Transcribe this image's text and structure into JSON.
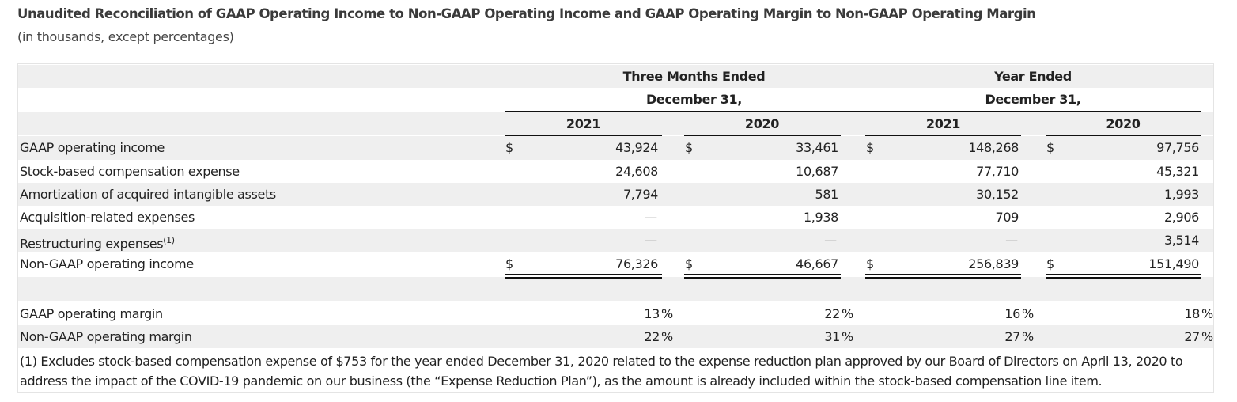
{
  "title": "Unaudited Reconciliation of GAAP Operating Income to Non-GAAP Operating Income and GAAP Operating Margin to Non-GAAP Operating Margin",
  "subtitle": "(in thousands, except percentages)",
  "headers": {
    "three_months_line1": "Three Months Ended",
    "three_months_line2": "December 31,",
    "year_line1": "Year Ended",
    "year_line2": "December 31,",
    "years": [
      "2021",
      "2020",
      "2021",
      "2020"
    ]
  },
  "currency_symbol": "$",
  "percent_symbol": "%",
  "rows": [
    {
      "label": "GAAP operating income",
      "values": [
        "43,924",
        "33,461",
        "148,268",
        "97,756"
      ]
    },
    {
      "label": "Stock-based compensation expense",
      "values": [
        "24,608",
        "10,687",
        "77,710",
        "45,321"
      ]
    },
    {
      "label": "Amortization of acquired intangible assets",
      "values": [
        "7,794",
        "581",
        "30,152",
        "1,993"
      ]
    },
    {
      "label": "Acquisition-related expenses",
      "values": [
        "—",
        "1,938",
        "709",
        "2,906"
      ]
    },
    {
      "label": "Restructuring expenses",
      "footnote_ref": "(1)",
      "values": [
        "—",
        "—",
        "—",
        "3,514"
      ]
    },
    {
      "label": "Non-GAAP operating income",
      "values": [
        "76,326",
        "46,667",
        "256,839",
        "151,490"
      ]
    }
  ],
  "margins": [
    {
      "label": "GAAP operating margin",
      "values": [
        "13",
        "22",
        "16",
        "18"
      ]
    },
    {
      "label": "Non-GAAP operating margin",
      "values": [
        "22",
        "31",
        "27",
        "27"
      ]
    }
  ],
  "footnote": "(1) Excludes stock-based compensation expense of $753 for the year ended December 31, 2020 related to the expense reduction plan approved by our Board of Directors on April 13, 2020 to address the impact of the COVID-19 pandemic on our business (the “Expense Reduction Plan”), as the amount is already included within the stock-based compensation line item."
}
